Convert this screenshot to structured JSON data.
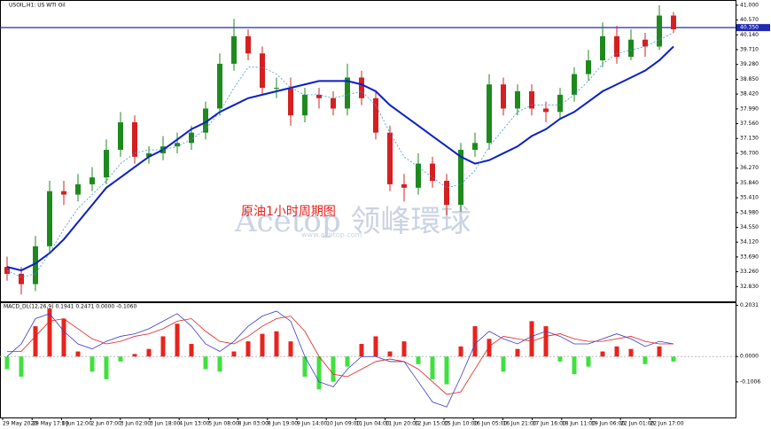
{
  "chart_data": {
    "type": "candlestick",
    "title": "USOIL,H1: US WTI Oil",
    "annotation": "原油1小时周期图",
    "watermark": "Acetop 领峰環球",
    "watermark_url": "www.acetop.com",
    "x_labels": [
      "29 May 2020",
      "29 May 17:00",
      "1 Jun 12:00",
      "2 Jun 07:00",
      "3 Jun 02:00",
      "3 Jun 18:00",
      "4 Jun 13:00",
      "5 Jun 08:00",
      "8 Jun 03:00",
      "8 Jun 19:00",
      "9 Jun 14:00",
      "10 Jun 09:00",
      "11 Jun 04:00",
      "11 Jun 20:00",
      "12 Jun 15:00",
      "15 Jun 10:00",
      "16 Jun 05:00",
      "16 Jun 21:00",
      "17 Jun 16:00",
      "18 Jun 11:00",
      "19 Jun 06:00",
      "22 Jun 01:00",
      "22 Jun 17:00"
    ],
    "up_color": "#1e8a1e",
    "down_color": "#d42020",
    "open": [
      33.4,
      33.2,
      32.9,
      34.0,
      35.6,
      35.5,
      35.8,
      36.0,
      36.8,
      37.6,
      36.6,
      36.7,
      36.9,
      37.0,
      37.3,
      38.0,
      39.3,
      40.1,
      39.6,
      38.6,
      38.6,
      37.8,
      38.4,
      38.3,
      38.0,
      38.9,
      38.3,
      37.3,
      35.8,
      35.7,
      36.4,
      35.9,
      35.2,
      36.8,
      37.0,
      38.7,
      38.0,
      38.5,
      38.0,
      37.9,
      38.4,
      39.0,
      39.4,
      40.1,
      39.5,
      40.0,
      39.8,
      40.7
    ],
    "high": [
      33.7,
      33.4,
      34.3,
      35.9,
      35.9,
      36.1,
      36.3,
      37.1,
      37.9,
      37.8,
      36.9,
      37.2,
      37.3,
      37.5,
      38.2,
      39.6,
      40.6,
      40.3,
      39.8,
      38.9,
      38.9,
      38.6,
      38.6,
      38.5,
      39.3,
      39.1,
      38.5,
      37.5,
      36.1,
      36.7,
      36.6,
      36.1,
      37.0,
      37.3,
      39.0,
      38.9,
      38.7,
      38.7,
      38.2,
      38.6,
      39.2,
      39.7,
      40.5,
      40.4,
      40.3,
      40.2,
      41.0,
      40.8
    ],
    "low": [
      33.0,
      32.6,
      32.7,
      33.8,
      35.2,
      35.3,
      35.6,
      35.8,
      36.6,
      36.4,
      36.4,
      36.5,
      36.7,
      36.8,
      37.1,
      37.8,
      39.1,
      39.4,
      38.4,
      38.3,
      37.5,
      37.6,
      38.0,
      37.8,
      37.8,
      38.1,
      37.1,
      35.6,
      35.3,
      35.5,
      35.7,
      34.9,
      35.0,
      36.6,
      36.8,
      37.8,
      37.8,
      37.8,
      37.6,
      37.7,
      38.2,
      38.8,
      39.2,
      39.3,
      39.4,
      39.5,
      39.7,
      40.2
    ],
    "close": [
      33.2,
      32.9,
      34.0,
      35.6,
      35.5,
      35.8,
      36.0,
      36.8,
      37.6,
      36.6,
      36.7,
      36.9,
      37.0,
      37.3,
      38.0,
      39.3,
      40.1,
      39.6,
      38.6,
      38.6,
      37.8,
      38.4,
      38.3,
      38.0,
      38.9,
      38.3,
      37.3,
      35.8,
      35.7,
      36.4,
      35.9,
      35.2,
      36.8,
      37.0,
      38.7,
      38.0,
      38.5,
      38.0,
      37.9,
      38.4,
      39.0,
      39.4,
      40.1,
      39.5,
      40.0,
      39.8,
      40.7,
      40.3
    ],
    "lines": [
      {
        "color": "#0a1fc8",
        "dashed": false,
        "values": [
          33.4,
          33.3,
          33.5,
          33.8,
          34.2,
          34.7,
          35.2,
          35.7,
          36.0,
          36.3,
          36.6,
          36.8,
          37.1,
          37.4,
          37.6,
          37.9,
          38.1,
          38.3,
          38.4,
          38.5,
          38.6,
          38.7,
          38.8,
          38.8,
          38.8,
          38.7,
          38.5,
          38.1,
          37.8,
          37.5,
          37.2,
          36.9,
          36.6,
          36.4,
          36.5,
          36.7,
          36.9,
          37.2,
          37.4,
          37.7,
          37.9,
          38.2,
          38.5,
          38.7,
          38.9,
          39.1,
          39.4,
          39.8
        ]
      },
      {
        "color": "#3f95d6",
        "dashed": true,
        "values": [
          33.3,
          33.1,
          33.2,
          33.8,
          34.5,
          35.1,
          35.5,
          35.9,
          36.4,
          36.7,
          36.8,
          36.8,
          36.9,
          37.1,
          37.4,
          37.9,
          38.6,
          39.2,
          39.2,
          39.0,
          38.6,
          38.4,
          38.4,
          38.3,
          38.4,
          38.5,
          38.1,
          37.3,
          36.6,
          36.3,
          36.0,
          35.7,
          35.8,
          36.2,
          36.9,
          37.4,
          37.9,
          38.1,
          38.1,
          38.1,
          38.4,
          38.8,
          39.3,
          39.6,
          39.7,
          39.8,
          40.0,
          40.2
        ]
      }
    ],
    "hline": {
      "value": 40.35,
      "label": "40.350",
      "color": "#1f2bb0"
    },
    "ylim": [
      32.4,
      41.1
    ],
    "yticks": [
      {
        "value": 41,
        "label": "41.000"
      },
      {
        "value": 40.57,
        "label": "40.570"
      },
      {
        "value": 40.14,
        "label": "40.140"
      },
      {
        "value": 39.71,
        "label": "39.710"
      },
      {
        "value": 39.28,
        "label": "39.280"
      },
      {
        "value": 38.85,
        "label": "38.850"
      },
      {
        "value": 38.42,
        "label": "38.420"
      },
      {
        "value": 37.99,
        "label": "37.990"
      },
      {
        "value": 37.56,
        "label": "37.560"
      },
      {
        "value": 37.13,
        "label": "37.130"
      },
      {
        "value": 36.7,
        "label": "36.700"
      },
      {
        "value": 36.27,
        "label": "36.270"
      },
      {
        "value": 35.84,
        "label": "35.840"
      },
      {
        "value": 35.41,
        "label": "35.410"
      },
      {
        "value": 34.98,
        "label": "34.980"
      },
      {
        "value": 34.55,
        "label": "34.550"
      },
      {
        "value": 34.12,
        "label": "34.120"
      },
      {
        "value": 33.69,
        "label": "33.690"
      },
      {
        "value": 33.26,
        "label": "33.260"
      },
      {
        "value": 32.83,
        "label": "32.830"
      }
    ],
    "macd": {
      "header": "MACD_DL(12,26,9) 0.1941 0.2471 0.0000 -0.1060",
      "ylim": [
        -0.245,
        0.215
      ],
      "yticks": [
        0.2031,
        {
          "value": 0,
          "label": "0.0000"
        },
        -0.1006
      ],
      "up_color": "#e8231c",
      "down_color": "#3fe03f",
      "histogram": [
        -0.05,
        -0.08,
        0.12,
        0.19,
        0.15,
        0.02,
        -0.06,
        -0.09,
        -0.02,
        0.01,
        0.03,
        0.08,
        0.13,
        0.05,
        -0.05,
        -0.06,
        0.02,
        0.06,
        0.09,
        0.1,
        0.06,
        -0.08,
        -0.13,
        -0.1,
        -0.04,
        0.05,
        0.08,
        0.02,
        0.06,
        -0.03,
        -0.09,
        -0.11,
        0.04,
        0.12,
        0.07,
        -0.06,
        0.03,
        0.14,
        0.12,
        -0.02,
        -0.07,
        -0.04,
        0.02,
        0.04,
        0.03,
        -0.03,
        0.04,
        -0.02
      ],
      "series": [
        {
          "color": "#3a3ad0",
          "values": [
            0,
            0.05,
            0.15,
            0.17,
            0.1,
            0.05,
            0.03,
            0.06,
            0.08,
            0.09,
            0.11,
            0.14,
            0.17,
            0.12,
            0.05,
            0.02,
            0.06,
            0.12,
            0.16,
            0.18,
            0.14,
            0,
            -0.1,
            -0.12,
            -0.05,
            0,
            0,
            -0.02,
            -0.02,
            -0.1,
            -0.18,
            -0.2,
            -0.08,
            0.05,
            0.1,
            0.07,
            0.05,
            0.08,
            0.1,
            0.08,
            0.05,
            0.05,
            0.07,
            0.09,
            0.07,
            0.04,
            0.06,
            0.05
          ]
        },
        {
          "color": "#e02020",
          "values": [
            0.02,
            0.02,
            0.08,
            0.14,
            0.15,
            0.11,
            0.07,
            0.05,
            0.06,
            0.08,
            0.09,
            0.11,
            0.14,
            0.15,
            0.1,
            0.06,
            0.05,
            0.08,
            0.12,
            0.15,
            0.16,
            0.1,
            0,
            -0.07,
            -0.08,
            -0.05,
            -0.02,
            -0.01,
            -0.02,
            -0.05,
            -0.1,
            -0.15,
            -0.14,
            -0.05,
            0.04,
            0.08,
            0.07,
            0.06,
            0.08,
            0.09,
            0.07,
            0.06,
            0.06,
            0.07,
            0.08,
            0.06,
            0.05,
            0.05
          ]
        }
      ]
    }
  }
}
